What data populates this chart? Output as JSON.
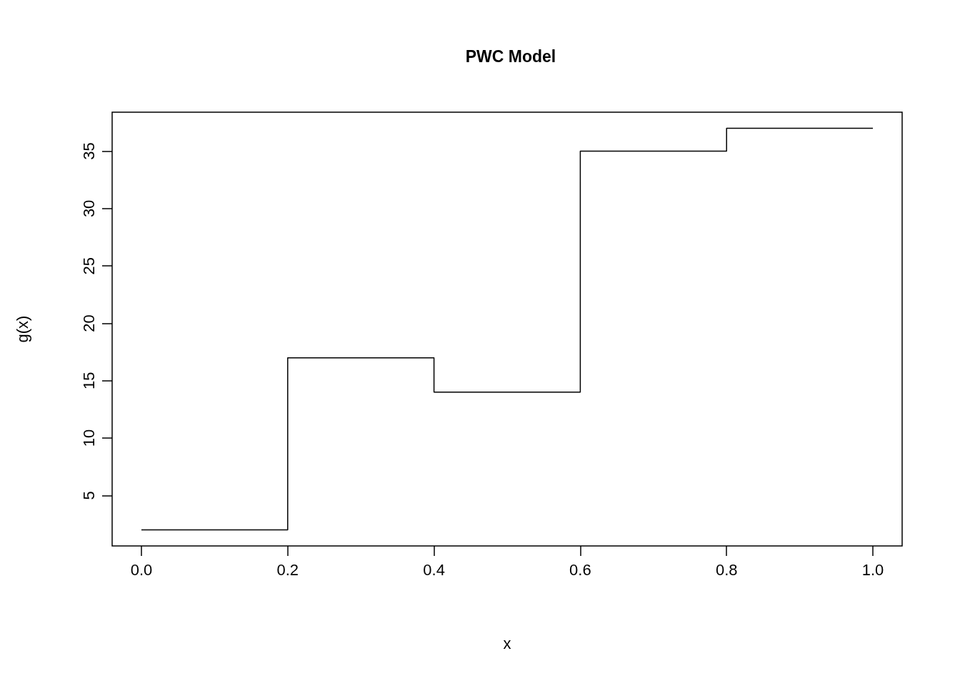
{
  "chart_data": {
    "type": "step",
    "title": "PWC Model",
    "xlabel": "x",
    "ylabel": "g(x)",
    "x": [
      0,
      0.2,
      0.4,
      0.6,
      0.8,
      1.0
    ],
    "series": [
      {
        "color": "#000000",
        "values": [
          2,
          17,
          14,
          35,
          37,
          37
        ]
      }
    ],
    "xlim": [
      -0.04,
      1.04
    ],
    "xticks": [
      {
        "value": 0,
        "label": "0.0"
      },
      0.2,
      0.4,
      0.6,
      0.8,
      {
        "value": 1,
        "label": "1.0"
      }
    ],
    "ylim": [
      0.6,
      38.4
    ],
    "yticks": [
      5,
      10,
      15,
      20,
      25,
      30,
      35
    ],
    "grid": false,
    "marker": "none",
    "line_style": "solid"
  }
}
